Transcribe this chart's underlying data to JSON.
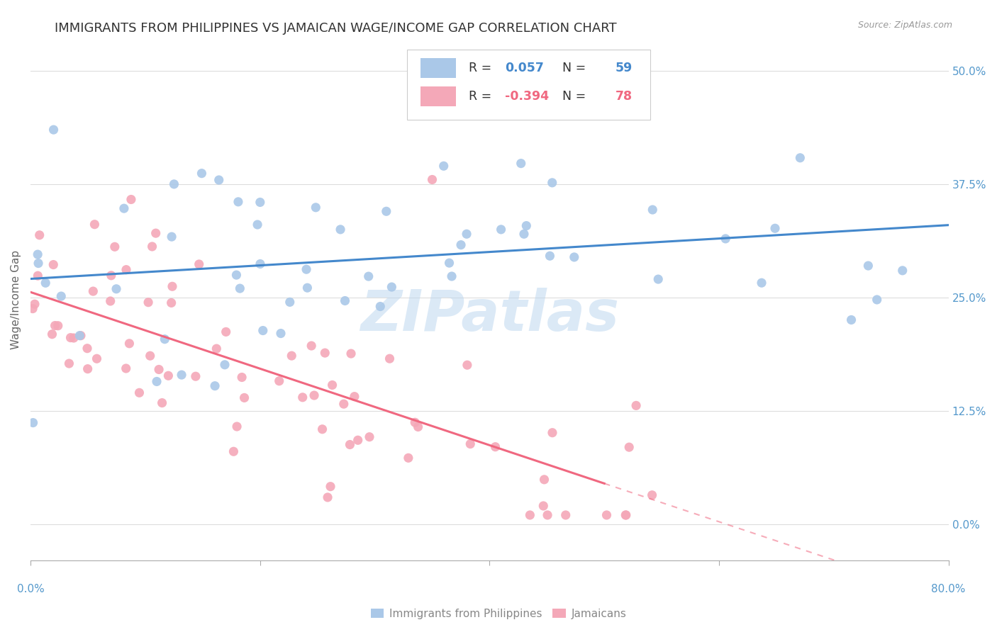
{
  "title": "IMMIGRANTS FROM PHILIPPINES VS JAMAICAN WAGE/INCOME GAP CORRELATION CHART",
  "source": "Source: ZipAtlas.com",
  "ylabel": "Wage/Income Gap",
  "ytick_labels": [
    "0.0%",
    "12.5%",
    "25.0%",
    "37.5%",
    "50.0%"
  ],
  "ytick_values": [
    0.0,
    0.125,
    0.25,
    0.375,
    0.5
  ],
  "xmin": 0.0,
  "xmax": 0.8,
  "ymin": -0.04,
  "ymax": 0.535,
  "philippines_R": 0.057,
  "philippines_N": 59,
  "jamaicans_R": -0.394,
  "jamaicans_N": 78,
  "philippines_color": "#aac8e8",
  "jamaicans_color": "#f4a8b8",
  "philippines_line_color": "#4488cc",
  "jamaicans_line_color": "#f06880",
  "legend_label_1": "Immigrants from Philippines",
  "legend_label_2": "Jamaicans",
  "watermark": "ZIPatlas",
  "title_color": "#333333",
  "axis_label_color": "#5599cc",
  "grid_color": "#dddddd",
  "title_fontsize": 13,
  "axis_tick_fontsize": 11,
  "ylabel_fontsize": 11,
  "source_fontsize": 9
}
